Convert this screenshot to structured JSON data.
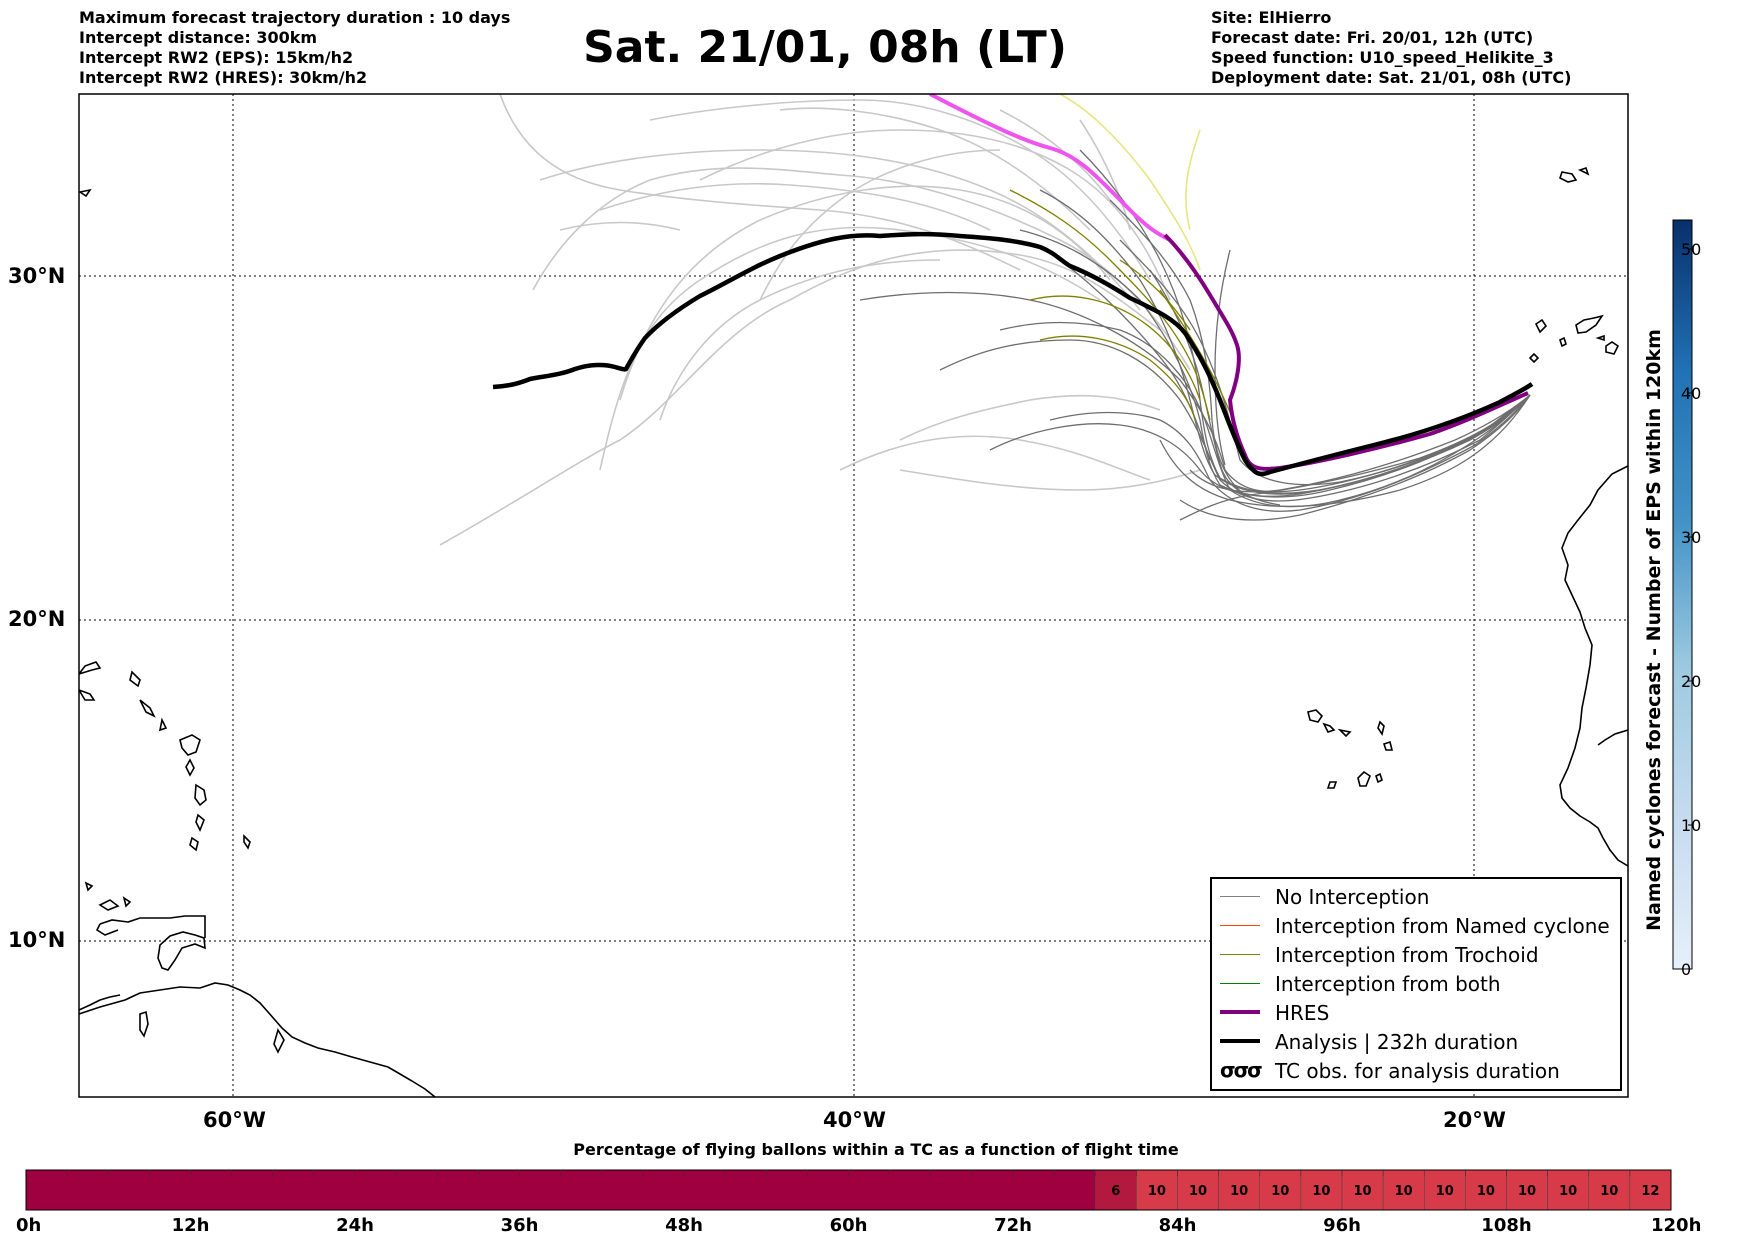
{
  "header": {
    "left": [
      "Maximum forecast trajectory duration : 10 days",
      "Intercept distance: 300km",
      "Intercept RW2 (EPS):  15km/h2",
      "Intercept RW2 (HRES): 30km/h2"
    ],
    "title": "Sat. 21/01, 08h (LT)",
    "right": [
      "Site: ElHierro",
      "Forecast date: Fri. 20/01, 12h (UTC)",
      "Speed function: U10_speed_Helikite_3",
      "Deployment date: Sat. 21/01, 08h (UTC)"
    ]
  },
  "map": {
    "lat_labels": [
      "30°N",
      "20°N",
      "10°N"
    ],
    "lon_labels": [
      "60°W",
      "40°W",
      "20°W"
    ],
    "colors": {
      "no_interception": "#6e6e6e",
      "named_cyclone": "#ff4500",
      "trochoid": "#808000",
      "both": "#008000",
      "hres": "#800080",
      "hres_early": "#ee55ee",
      "analysis": "#000000",
      "background_track": "#c8c8c8",
      "yellow_track": "#e6e680"
    }
  },
  "legend": {
    "items": [
      {
        "label": "No Interception",
        "color": "#808080",
        "width": 1
      },
      {
        "label": "Interception from Named cyclone",
        "color": "#ff4500",
        "width": 1
      },
      {
        "label": "Interception from Trochoid",
        "color": "#808000",
        "width": 1
      },
      {
        "label": "Interception from both",
        "color": "#008000",
        "width": 1
      },
      {
        "label": "HRES",
        "color": "#800080",
        "width": 4
      },
      {
        "label": "Analysis | 232h duration",
        "color": "#000000",
        "width": 4
      }
    ],
    "tc_label": "TC obs. for analysis duration",
    "tc_symbol": "σσσ"
  },
  "colorbar": {
    "label": "Named cyclones forecast - Number of EPS within 120km",
    "ticks": [
      "0",
      "10",
      "20",
      "30",
      "40",
      "50"
    ],
    "min": 0,
    "max": 52,
    "color_low": "#e6f0fa",
    "color_high": "#08306b"
  },
  "percentage_bar": {
    "title": "Percentage of flying ballons within a TC as a function of flight time",
    "hour_labels": [
      "0h",
      "12h",
      "24h",
      "36h",
      "48h",
      "60h",
      "72h",
      "84h",
      "96h",
      "108h",
      "120h"
    ],
    "values": [
      6,
      10,
      10,
      10,
      10,
      10,
      10,
      10,
      10,
      10,
      10,
      10,
      10,
      12
    ],
    "first_value_hour": 78,
    "empty_color": "#9e0040",
    "low_color": "#b3193f",
    "mid_color": "#d73b49"
  }
}
